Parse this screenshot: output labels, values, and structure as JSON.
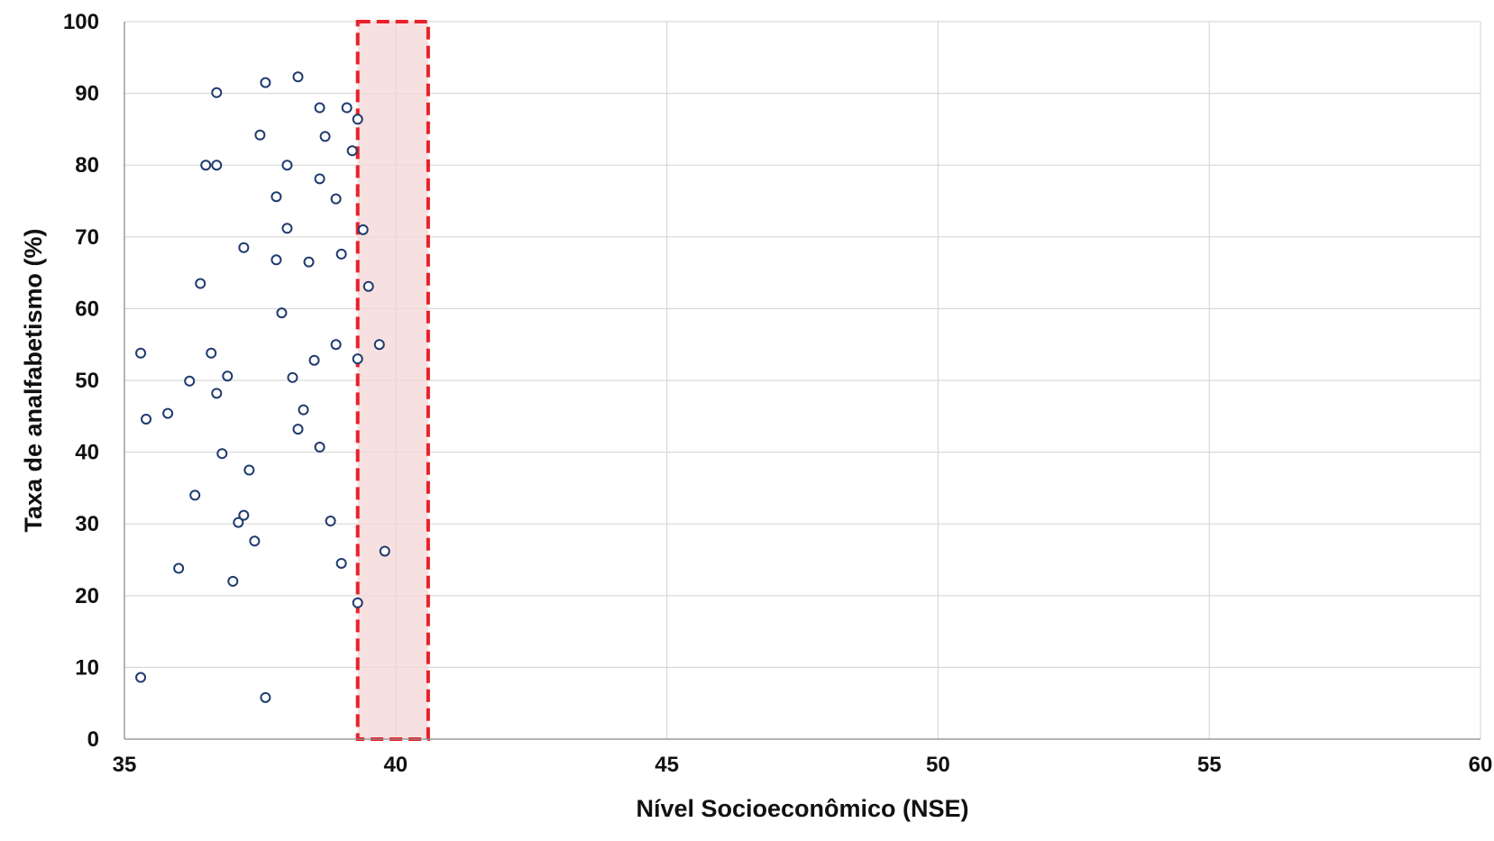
{
  "chart_data": {
    "type": "scatter",
    "title": "",
    "xlabel": "Nível Socioeconômico (NSE)",
    "ylabel": "Taxa de analfabetismo (%)",
    "xlim": [
      35,
      60
    ],
    "ylim": [
      0,
      100
    ],
    "xticks": [
      35,
      40,
      45,
      50,
      55,
      60
    ],
    "yticks": [
      0,
      10,
      20,
      30,
      40,
      50,
      60,
      70,
      80,
      90,
      100
    ],
    "grid": true,
    "legend": "none",
    "marker_color": "#1f3a6e",
    "marker_style": "hollow-circle",
    "highlight_region": {
      "x_range": [
        39.3,
        40.6
      ],
      "y_range": [
        0,
        100
      ],
      "fill_color": "#f4d5d6",
      "border_color": "#e8202a",
      "border_style": "dashed"
    },
    "series": [
      {
        "points": [
          [
            35.3,
            53.8
          ],
          [
            35.3,
            8.6
          ],
          [
            35.4,
            44.6
          ],
          [
            35.8,
            45.4
          ],
          [
            36.0,
            23.8
          ],
          [
            36.2,
            49.9
          ],
          [
            36.3,
            34.0
          ],
          [
            36.4,
            63.5
          ],
          [
            36.5,
            80.0
          ],
          [
            36.6,
            53.8
          ],
          [
            36.7,
            80.0
          ],
          [
            36.7,
            90.1
          ],
          [
            36.7,
            48.2
          ],
          [
            36.8,
            39.8
          ],
          [
            36.9,
            50.6
          ],
          [
            37.0,
            22.0
          ],
          [
            37.1,
            30.2
          ],
          [
            37.2,
            31.2
          ],
          [
            37.2,
            68.5
          ],
          [
            37.3,
            37.5
          ],
          [
            37.4,
            27.6
          ],
          [
            37.5,
            84.2
          ],
          [
            37.6,
            91.5
          ],
          [
            37.6,
            5.8
          ],
          [
            37.8,
            75.6
          ],
          [
            37.8,
            66.8
          ],
          [
            37.9,
            59.4
          ],
          [
            38.0,
            80.0
          ],
          [
            38.0,
            71.2
          ],
          [
            38.1,
            50.4
          ],
          [
            38.2,
            92.3
          ],
          [
            38.2,
            43.2
          ],
          [
            38.3,
            45.9
          ],
          [
            38.4,
            66.5
          ],
          [
            38.5,
            52.8
          ],
          [
            38.6,
            88.0
          ],
          [
            38.6,
            78.1
          ],
          [
            38.6,
            40.7
          ],
          [
            38.7,
            84.0
          ],
          [
            38.8,
            30.4
          ],
          [
            38.9,
            75.3
          ],
          [
            38.9,
            55.0
          ],
          [
            39.0,
            24.5
          ],
          [
            39.0,
            67.6
          ],
          [
            39.1,
            88.0
          ],
          [
            39.2,
            82.0
          ],
          [
            39.3,
            86.4
          ],
          [
            39.3,
            53.0
          ],
          [
            39.3,
            19.0
          ],
          [
            39.4,
            71.0
          ],
          [
            39.5,
            63.1
          ],
          [
            39.7,
            55.0
          ],
          [
            39.8,
            26.2
          ]
        ]
      }
    ]
  }
}
